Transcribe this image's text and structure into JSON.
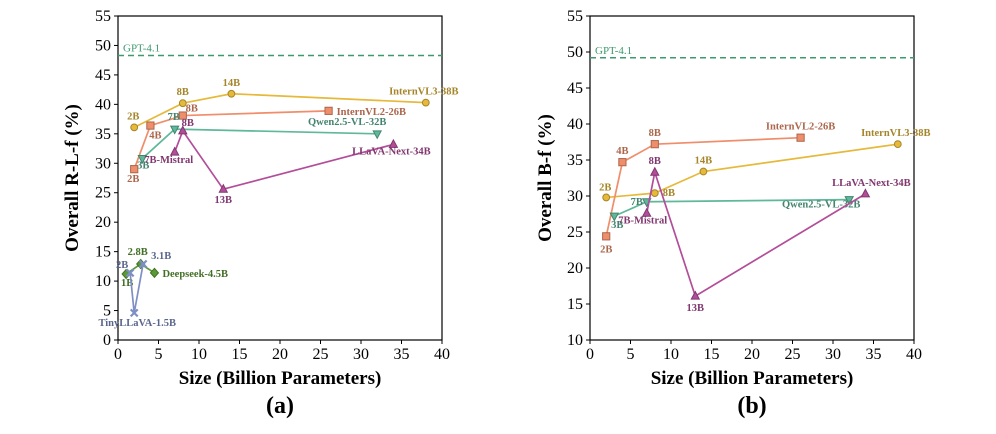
{
  "chart_data": [
    {
      "type": "line",
      "panel_label": "(a)",
      "xlabel": "Size (Billion Parameters)",
      "ylabel": "Overall R-L-f (%)",
      "xlim": [
        0,
        40
      ],
      "ylim": [
        0,
        55
      ],
      "xticks": [
        0,
        5,
        10,
        15,
        20,
        25,
        30,
        35,
        40
      ],
      "yticks": [
        0,
        5,
        10,
        15,
        20,
        25,
        30,
        35,
        40,
        45,
        50,
        55
      ],
      "reference": {
        "name": "GPT-4.1",
        "value": 48.3,
        "color": "#3d9a6e"
      },
      "series": [
        {
          "name": "InternVL3-38B",
          "color": "#e6b93a",
          "marker": "circle",
          "points": [
            {
              "x": 2,
              "y": 36.1,
              "label": "2B"
            },
            {
              "x": 8,
              "y": 40.2,
              "label": "8B"
            },
            {
              "x": 14,
              "y": 41.8,
              "label": "14B"
            },
            {
              "x": 38,
              "y": 40.3,
              "label": "InternVL3-38B"
            }
          ]
        },
        {
          "name": "InternVL2-26B",
          "color": "#ef8e6a",
          "marker": "square",
          "points": [
            {
              "x": 2,
              "y": 29.0,
              "label": "2B"
            },
            {
              "x": 4,
              "y": 36.4,
              "label": "4B"
            },
            {
              "x": 8,
              "y": 38.1,
              "label": "8B"
            },
            {
              "x": 26,
              "y": 38.9,
              "label": "InternVL2-26B"
            }
          ]
        },
        {
          "name": "Qwen2.5-VL-32B",
          "color": "#5fb89a",
          "marker": "triangle-down",
          "points": [
            {
              "x": 3,
              "y": 30.8,
              "label": "3B"
            },
            {
              "x": 7,
              "y": 35.8,
              "label": "7B"
            },
            {
              "x": 32,
              "y": 35.0,
              "label": "Qwen2.5-VL-32B"
            }
          ]
        },
        {
          "name": "LLaVA-Next-34B",
          "color": "#b34d9a",
          "marker": "triangle-up",
          "points": [
            {
              "x": 7,
              "y": 31.9,
              "label": "7B-Mistral"
            },
            {
              "x": 8,
              "y": 35.5,
              "label": "8B"
            },
            {
              "x": 13,
              "y": 25.6,
              "label": "13B"
            },
            {
              "x": 34,
              "y": 33.2,
              "label": "LLaVA-Next-34B"
            }
          ]
        },
        {
          "name": "Deepseek-4.5B",
          "color": "#5a9a34",
          "marker": "diamond",
          "points": [
            {
              "x": 1,
              "y": 11.2,
              "label": "1B"
            },
            {
              "x": 2.8,
              "y": 12.9,
              "label": "2.8B"
            },
            {
              "x": 4.5,
              "y": 11.4,
              "label": "Deepseek-4.5B"
            }
          ]
        },
        {
          "name": "TinyLLaVA-1.5B",
          "color": "#7d8fc4",
          "marker": "x",
          "points": [
            {
              "x": 1.5,
              "y": 11.4,
              "label": "2B"
            },
            {
              "x": 2,
              "y": 4.6,
              "label": "TinyLLaVA-1.5B"
            },
            {
              "x": 3.1,
              "y": 12.9,
              "label": "3.1B"
            }
          ]
        }
      ]
    },
    {
      "type": "line",
      "panel_label": "(b)",
      "xlabel": "Size (Billion Parameters)",
      "ylabel": "Overall B-f (%)",
      "xlim": [
        0,
        40
      ],
      "ylim": [
        10,
        55
      ],
      "xticks": [
        0,
        5,
        10,
        15,
        20,
        25,
        30,
        35,
        40
      ],
      "yticks": [
        10,
        15,
        20,
        25,
        30,
        35,
        40,
        45,
        50,
        55
      ],
      "reference": {
        "name": "GPT-4.1",
        "value": 49.2,
        "color": "#3d9a6e"
      },
      "series": [
        {
          "name": "InternVL3-38B",
          "color": "#e6b93a",
          "marker": "circle",
          "points": [
            {
              "x": 2,
              "y": 29.8,
              "label": "2B"
            },
            {
              "x": 8,
              "y": 30.4,
              "label": "8B"
            },
            {
              "x": 14,
              "y": 33.4,
              "label": "14B"
            },
            {
              "x": 38,
              "y": 37.2,
              "label": "InternVL3-38B"
            }
          ]
        },
        {
          "name": "InternVL2-26B",
          "color": "#ef8e6a",
          "marker": "square",
          "points": [
            {
              "x": 2,
              "y": 24.4,
              "label": "2B"
            },
            {
              "x": 4,
              "y": 34.7,
              "label": "4B"
            },
            {
              "x": 8,
              "y": 37.2,
              "label": "8B"
            },
            {
              "x": 26,
              "y": 38.1,
              "label": "InternVL2-26B"
            }
          ]
        },
        {
          "name": "Qwen2.5-VL-32B",
          "color": "#5fb89a",
          "marker": "triangle-down",
          "points": [
            {
              "x": 3,
              "y": 27.2,
              "label": "3B"
            },
            {
              "x": 7,
              "y": 29.2,
              "label": "7B"
            },
            {
              "x": 32,
              "y": 29.5,
              "label": "Qwen2.5-VL-32B"
            }
          ]
        },
        {
          "name": "LLaVA-Next-34B",
          "color": "#b34d9a",
          "marker": "triangle-up",
          "points": [
            {
              "x": 7,
              "y": 27.6,
              "label": "7B-Mistral"
            },
            {
              "x": 8,
              "y": 33.3,
              "label": "8B"
            },
            {
              "x": 13,
              "y": 16.1,
              "label": "13B"
            },
            {
              "x": 34,
              "y": 30.3,
              "label": "LLaVA-Next-34B"
            }
          ]
        }
      ]
    }
  ]
}
